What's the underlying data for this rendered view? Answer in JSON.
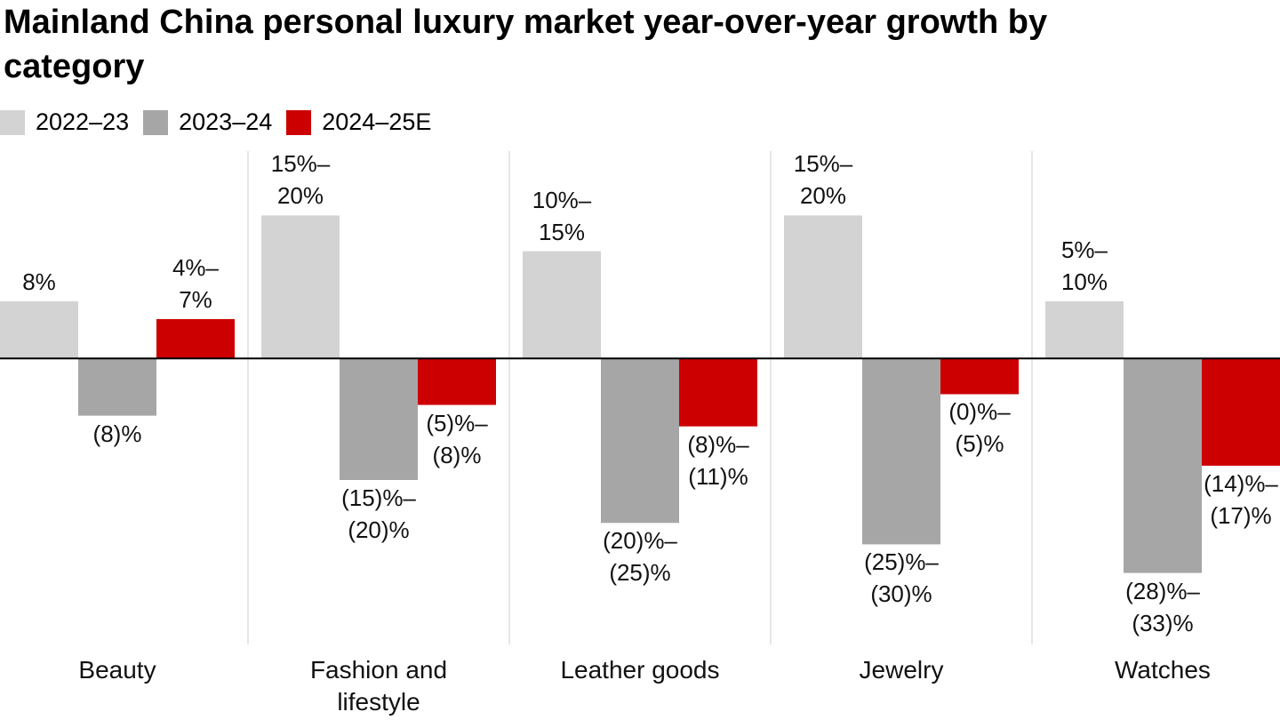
{
  "chart_data": {
    "type": "bar",
    "title": "Mainland China personal luxury market year-over-year growth by category",
    "categories": [
      "Beauty",
      "Fashion and lifestyle",
      "Leather goods",
      "Jewelry",
      "Watches"
    ],
    "series": [
      {
        "name": "2022–23",
        "color": "#d3d3d3",
        "values": [
          8,
          20,
          15,
          20,
          8
        ],
        "value_labels": [
          "8%",
          "15%–\n20%",
          "10%–\n15%",
          "15%–\n20%",
          "5%–\n10%"
        ]
      },
      {
        "name": "2023–24",
        "color": "#a6a6a6",
        "values": [
          -8,
          -17,
          -23,
          -26,
          -30
        ],
        "value_labels": [
          "(8)%",
          "(15)%–\n(20)%",
          "(20)%–\n(25)%",
          "(25)%–\n(30)%",
          "(28)%–\n(33)%"
        ]
      },
      {
        "name": "2024–25E",
        "color": "#cc0000",
        "values": [
          5.5,
          -6.5,
          -9.5,
          -5,
          -15
        ],
        "value_labels": [
          "4%–\n7%",
          "(5)%–\n(8)%",
          "(8)%–\n(11)%",
          "(0)%–\n(5)%",
          "(14)%–\n(17)%"
        ]
      }
    ],
    "ylim": [
      -40,
      29
    ]
  }
}
